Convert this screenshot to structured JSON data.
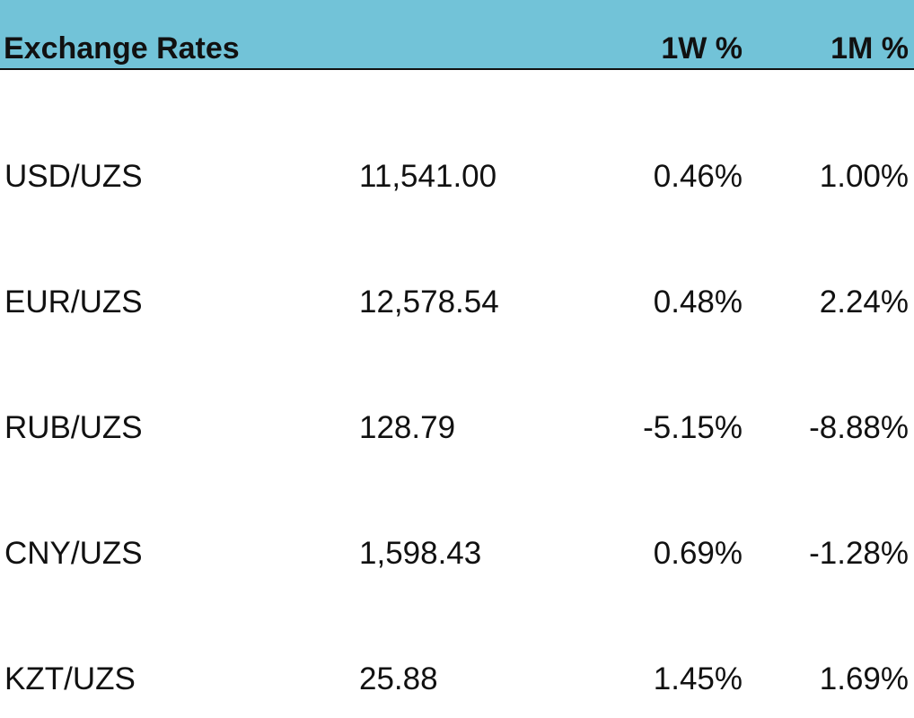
{
  "header": {
    "title": "Exchange Rates",
    "columns": [
      "1W %",
      "1M %"
    ]
  },
  "table": {
    "rows": [
      [
        "USD/UZS",
        "11,541.00",
        "0.46%",
        "1.00%"
      ],
      [
        "EUR/UZS",
        "12,578.54",
        "0.48%",
        "2.24%"
      ],
      [
        "RUB/UZS",
        "128.79",
        "-5.15%",
        "-8.88%"
      ],
      [
        "CNY/UZS",
        "1,598.43",
        "0.69%",
        "-1.28%"
      ],
      [
        "KZT/UZS",
        "25.88",
        "1.45%",
        "1.69%"
      ]
    ]
  }
}
